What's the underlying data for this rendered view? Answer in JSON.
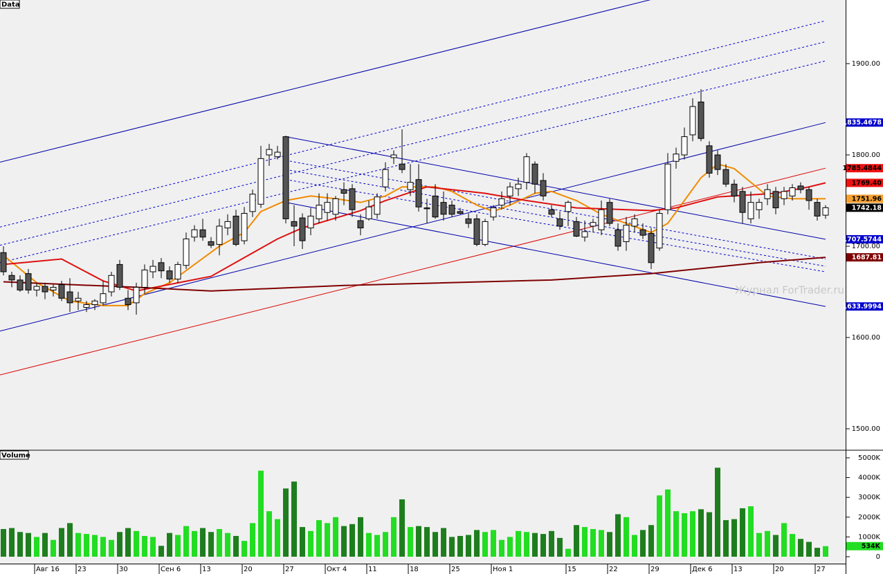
{
  "chart_data": {
    "type": "candlestick",
    "panel_title": "Data",
    "watermark": "Журнал ForTrader.ru",
    "categories": [
      null,
      null,
      null,
      null,
      "Авг 16",
      null,
      null,
      null,
      null,
      "23",
      null,
      null,
      null,
      null,
      "30",
      null,
      null,
      null,
      null,
      "Сен 6",
      null,
      null,
      null,
      null,
      "13",
      null,
      null,
      null,
      null,
      "20",
      null,
      null,
      null,
      null,
      "27",
      null,
      null,
      null,
      null,
      "Окт 4",
      null,
      null,
      null,
      null,
      "11",
      null,
      null,
      null,
      null,
      "18",
      null,
      null,
      null,
      null,
      "25",
      null,
      null,
      null,
      null,
      "Ноя 1",
      null,
      null,
      null,
      null,
      null,
      null,
      null,
      null,
      "15",
      null,
      null,
      null,
      null,
      "22",
      null,
      null,
      null,
      null,
      "29",
      null,
      null,
      null,
      null,
      "Дек 6",
      null,
      null,
      null,
      null,
      "13",
      null,
      null,
      null,
      null,
      "20",
      null,
      null,
      null,
      null,
      "27",
      null
    ],
    "open": [
      1693,
      1668,
      1663,
      1670,
      1652,
      1656,
      1652,
      1658,
      1650,
      1640,
      1633,
      1636,
      1638,
      1650,
      1680,
      1643,
      1638,
      1655,
      1672,
      1682,
      1673,
      1664,
      1679,
      1710,
      1718,
      1705,
      1702,
      1720,
      1733,
      1706,
      1738,
      1746,
      1800,
      1798,
      1820,
      1727,
      1731,
      1720,
      1730,
      1737,
      1735,
      1762,
      1763,
      1728,
      1730,
      1735,
      1765,
      1797,
      1790,
      1762,
      1773,
      1742,
      1755,
      1748,
      1745,
      1738,
      1730,
      1730,
      1702,
      1732,
      1745,
      1755,
      1763,
      1770,
      1790,
      1772,
      1740,
      1730,
      1738,
      1727,
      1710,
      1722,
      1718,
      1748,
      1718,
      1705,
      1722,
      1718,
      1714,
      1698,
      1740,
      1793,
      1800,
      1822,
      1858,
      1810,
      1800,
      1784,
      1768,
      1760,
      1730,
      1740,
      1752,
      1760,
      1752,
      1755,
      1766,
      1762,
      1748,
      1734
    ],
    "high": [
      1700,
      1672,
      1668,
      1675,
      1660,
      1660,
      1658,
      1662,
      1665,
      1650,
      1640,
      1642,
      1662,
      1672,
      1685,
      1652,
      1660,
      1680,
      1685,
      1687,
      1678,
      1683,
      1715,
      1723,
      1730,
      1710,
      1730,
      1735,
      1740,
      1743,
      1762,
      1810,
      1812,
      1810,
      1821,
      1745,
      1736,
      1742,
      1758,
      1758,
      1755,
      1770,
      1768,
      1735,
      1750,
      1758,
      1792,
      1805,
      1828,
      1790,
      1790,
      1752,
      1768,
      1760,
      1750,
      1742,
      1736,
      1735,
      1730,
      1745,
      1760,
      1770,
      1775,
      1802,
      1793,
      1780,
      1745,
      1738,
      1750,
      1732,
      1728,
      1730,
      1750,
      1752,
      1725,
      1732,
      1735,
      1725,
      1720,
      1740,
      1802,
      1808,
      1830,
      1862,
      1872,
      1815,
      1805,
      1790,
      1773,
      1765,
      1760,
      1752,
      1768,
      1765,
      1765,
      1768,
      1770,
      1765,
      1752,
      1745
    ],
    "low": [
      1668,
      1655,
      1650,
      1648,
      1645,
      1642,
      1645,
      1640,
      1628,
      1630,
      1628,
      1630,
      1635,
      1645,
      1652,
      1630,
      1625,
      1648,
      1665,
      1665,
      1660,
      1660,
      1675,
      1705,
      1706,
      1698,
      1690,
      1712,
      1700,
      1702,
      1732,
      1742,
      1788,
      1795,
      1725,
      1700,
      1697,
      1712,
      1725,
      1728,
      1728,
      1745,
      1732,
      1712,
      1728,
      1730,
      1760,
      1790,
      1780,
      1755,
      1738,
      1725,
      1730,
      1728,
      1732,
      1735,
      1720,
      1700,
      1700,
      1728,
      1740,
      1745,
      1755,
      1762,
      1758,
      1750,
      1732,
      1718,
      1722,
      1710,
      1705,
      1715,
      1712,
      1722,
      1695,
      1695,
      1715,
      1708,
      1675,
      1695,
      1735,
      1785,
      1795,
      1815,
      1815,
      1775,
      1778,
      1765,
      1748,
      1725,
      1725,
      1730,
      1745,
      1735,
      1745,
      1750,
      1758,
      1740,
      1728,
      1730
    ],
    "close": [
      1672,
      1663,
      1652,
      1652,
      1656,
      1650,
      1655,
      1643,
      1638,
      1643,
      1636,
      1640,
      1648,
      1668,
      1655,
      1636,
      1655,
      1674,
      1678,
      1673,
      1664,
      1680,
      1708,
      1718,
      1710,
      1701,
      1722,
      1727,
      1702,
      1736,
      1757,
      1796,
      1806,
      1803,
      1730,
      1722,
      1706,
      1733,
      1745,
      1748,
      1752,
      1758,
      1740,
      1720,
      1743,
      1754,
      1784,
      1800,
      1784,
      1770,
      1743,
      1741,
      1732,
      1735,
      1735,
      1736,
      1725,
      1702,
      1727,
      1742,
      1752,
      1765,
      1768,
      1798,
      1768,
      1755,
      1735,
      1722,
      1748,
      1711,
      1716,
      1726,
      1740,
      1725,
      1700,
      1723,
      1730,
      1712,
      1682,
      1736,
      1790,
      1801,
      1820,
      1853,
      1818,
      1780,
      1784,
      1768,
      1755,
      1737,
      1748,
      1748,
      1762,
      1742,
      1760,
      1764,
      1762,
      1750,
      1733,
      1742.18
    ],
    "up_color": "#ffffff",
    "down_color": "#555555",
    "ylim": [
      1477.3,
      1969.7
    ],
    "yticks": [
      {
        "value": 1500,
        "label": "1500.00"
      },
      {
        "value": 1600,
        "label": "1600.00"
      },
      {
        "value": 1700,
        "label": "1700.00"
      },
      {
        "value": 1800,
        "label": "1800.00"
      },
      {
        "value": 1900,
        "label": "1900.00"
      }
    ],
    "moving_averages": [
      {
        "color": "#f08c00",
        "x": [
          0,
          4,
          8,
          12,
          15,
          17,
          20,
          23,
          26,
          29,
          31,
          34,
          37,
          40,
          43,
          46,
          48,
          52,
          54,
          57,
          59,
          61,
          64,
          66,
          69,
          72,
          75,
          78,
          80,
          82,
          84,
          86,
          88,
          90,
          92,
          95,
          99
        ],
        "values": [
          1690,
          1660,
          1640,
          1635,
          1635,
          1648,
          1660,
          1680,
          1700,
          1715,
          1738,
          1750,
          1755,
          1752,
          1748,
          1755,
          1765,
          1765,
          1760,
          1745,
          1738,
          1745,
          1758,
          1760,
          1750,
          1735,
          1725,
          1715,
          1725,
          1750,
          1775,
          1790,
          1785,
          1770,
          1755,
          1752,
          1751.96
        ]
      },
      {
        "color": "#dd1111",
        "x": [
          0,
          7,
          12,
          16,
          25,
          33,
          36,
          43,
          46,
          51,
          58,
          63,
          69,
          78,
          81,
          86,
          93,
          97,
          99
        ],
        "values": [
          1680,
          1686,
          1662,
          1651,
          1667,
          1708,
          1720,
          1739,
          1750,
          1765,
          1758,
          1750,
          1742,
          1739,
          1742,
          1754,
          1758,
          1765,
          1769.4
        ]
      },
      {
        "color": "#800000",
        "x": [
          0,
          16,
          25,
          41,
          66,
          78,
          91,
          99
        ],
        "values": [
          1661,
          1655,
          1651,
          1657,
          1663,
          1670,
          1682,
          1687.81
        ]
      }
    ],
    "trend_lines": [
      {
        "color": "#0000aa",
        "dashed": false,
        "points": [
          [
            -0.42,
            1792
          ],
          [
            77.9,
            1970
          ]
        ]
      },
      {
        "color": "#0000aa",
        "dashed": false,
        "points": [
          [
            -0.42,
            1607
          ],
          [
            99,
            1835.4678
          ]
        ]
      },
      {
        "color": "#0000cc",
        "dashed": true,
        "points": [
          [
            -0.42,
            1721
          ],
          [
            99,
            1947
          ]
        ]
      },
      {
        "color": "#0000cc",
        "dashed": true,
        "points": [
          [
            -0.42,
            1701
          ],
          [
            99,
            1924
          ]
        ]
      },
      {
        "color": "#0000cc",
        "dashed": true,
        "points": [
          [
            -0.42,
            1682
          ],
          [
            99,
            1903
          ]
        ]
      },
      {
        "color": "#dd0000",
        "dashed": false,
        "points": [
          [
            -0.42,
            1559
          ],
          [
            99,
            1785.4844
          ]
        ]
      },
      {
        "color": "#0000aa",
        "dashed": false,
        "points": [
          [
            34,
            1820
          ],
          [
            99,
            1707.5744
          ]
        ]
      },
      {
        "color": "#0000aa",
        "dashed": false,
        "points": [
          [
            34,
            1748
          ],
          [
            99,
            1633.9994
          ]
        ]
      },
      {
        "color": "#0000cc",
        "dashed": true,
        "points": [
          [
            34,
            1794
          ],
          [
            99,
            1686
          ]
        ]
      },
      {
        "color": "#0000cc",
        "dashed": true,
        "points": [
          [
            34,
            1784
          ],
          [
            99,
            1678
          ]
        ]
      },
      {
        "color": "#0000cc",
        "dashed": true,
        "points": [
          [
            34,
            1773
          ],
          [
            99,
            1672
          ]
        ]
      }
    ],
    "price_labels": [
      {
        "value": 1835.4678,
        "color": "#0000cc",
        "text_color": "#ffffff"
      },
      {
        "value": 1785.4844,
        "color": "#ee1111",
        "text_color": "#000000"
      },
      {
        "value": 1769.4,
        "label": "1769.40",
        "color": "#ee1111",
        "text_color": "#000000"
      },
      {
        "value": 1751.96,
        "color": "#f5a030",
        "text_color": "#000000"
      },
      {
        "value": 1742.18,
        "color": "#000000",
        "text_color": "#ffffff"
      },
      {
        "value": 1707.5744,
        "color": "#0000cc",
        "text_color": "#ffffff"
      },
      {
        "value": 1687.81,
        "color": "#800000",
        "text_color": "#ffffff"
      },
      {
        "value": 1633.9994,
        "color": "#0000cc",
        "text_color": "#ffffff"
      }
    ],
    "volume": {
      "panel_title": "Volume",
      "values": [
        1400,
        1450,
        1250,
        1200,
        1000,
        1200,
        850,
        1450,
        1700,
        1200,
        1150,
        1100,
        1000,
        850,
        1250,
        1450,
        1300,
        1050,
        1000,
        550,
        1200,
        1100,
        1550,
        1300,
        1450,
        1250,
        1400,
        1200,
        1050,
        800,
        1700,
        4350,
        2300,
        1900,
        3450,
        3800,
        1500,
        1300,
        1850,
        1700,
        2000,
        1550,
        1650,
        2000,
        1200,
        1100,
        1250,
        2000,
        2900,
        1500,
        1550,
        1500,
        1250,
        1450,
        1000,
        1050,
        1100,
        1350,
        1250,
        1350,
        850,
        1000,
        1300,
        1250,
        1200,
        1150,
        1300,
        950,
        400,
        1600,
        1500,
        1400,
        1350,
        1250,
        2150,
        2000,
        1100,
        1350,
        1600,
        3100,
        3400,
        2300,
        2200,
        2300,
        2400,
        2250,
        4500,
        1850,
        1900,
        2450,
        2550,
        1200,
        1300,
        1100,
        1700,
        1150,
        900,
        750,
        450,
        534
      ],
      "up_color": "#22dd22",
      "down_color": "#1e7e1e",
      "ylim": [
        0,
        5245
      ],
      "yticks": [
        0,
        {
          "value": 1000,
          "label": "1000K"
        },
        {
          "value": 2000,
          "label": "2000K"
        },
        {
          "value": 3000,
          "label": "3000K"
        },
        {
          "value": 4000,
          "label": "4000K"
        },
        {
          "value": 5000,
          "label": "5000K"
        }
      ],
      "current_label": {
        "value": 534,
        "label": "534K",
        "color": "#22dd22"
      }
    }
  }
}
